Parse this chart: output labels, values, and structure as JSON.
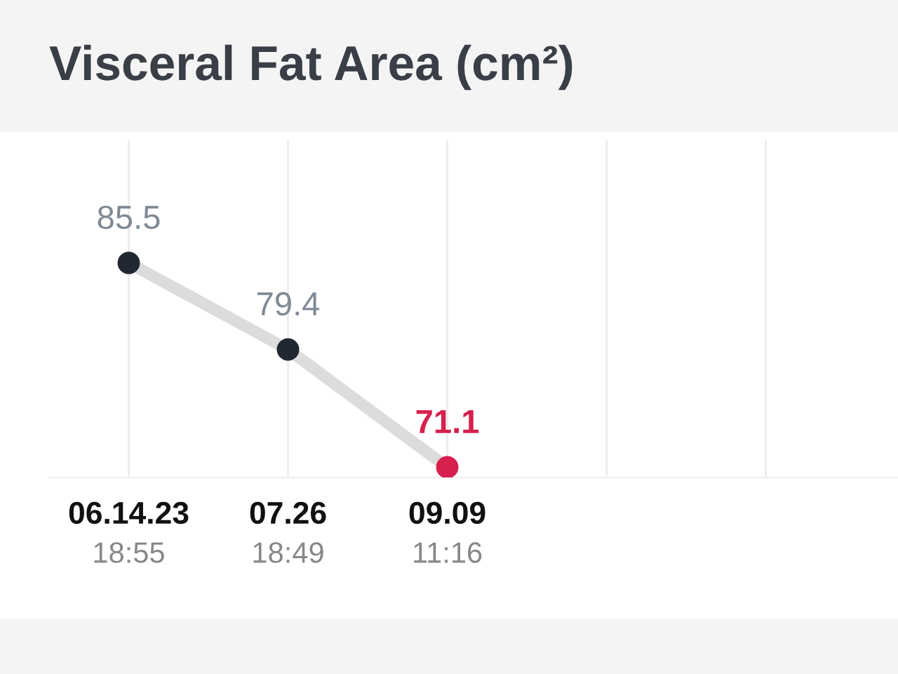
{
  "chart_data": {
    "type": "line",
    "title": "Visceral Fat Area (cm²)",
    "categories": [
      "06.14.23\n18:55",
      "07.26\n18:49",
      "09.09\n11:16",
      null,
      null
    ],
    "series": [
      {
        "color": "#dcdcdc",
        "colors": [
          "#222833",
          "#222833",
          "#d6204e",
          null,
          null
        ],
        "values": [
          85.5,
          79.4,
          71.1,
          null,
          null
        ]
      }
    ],
    "data_labels": true,
    "grid": "x",
    "marker": "circle",
    "legend": false
  }
}
